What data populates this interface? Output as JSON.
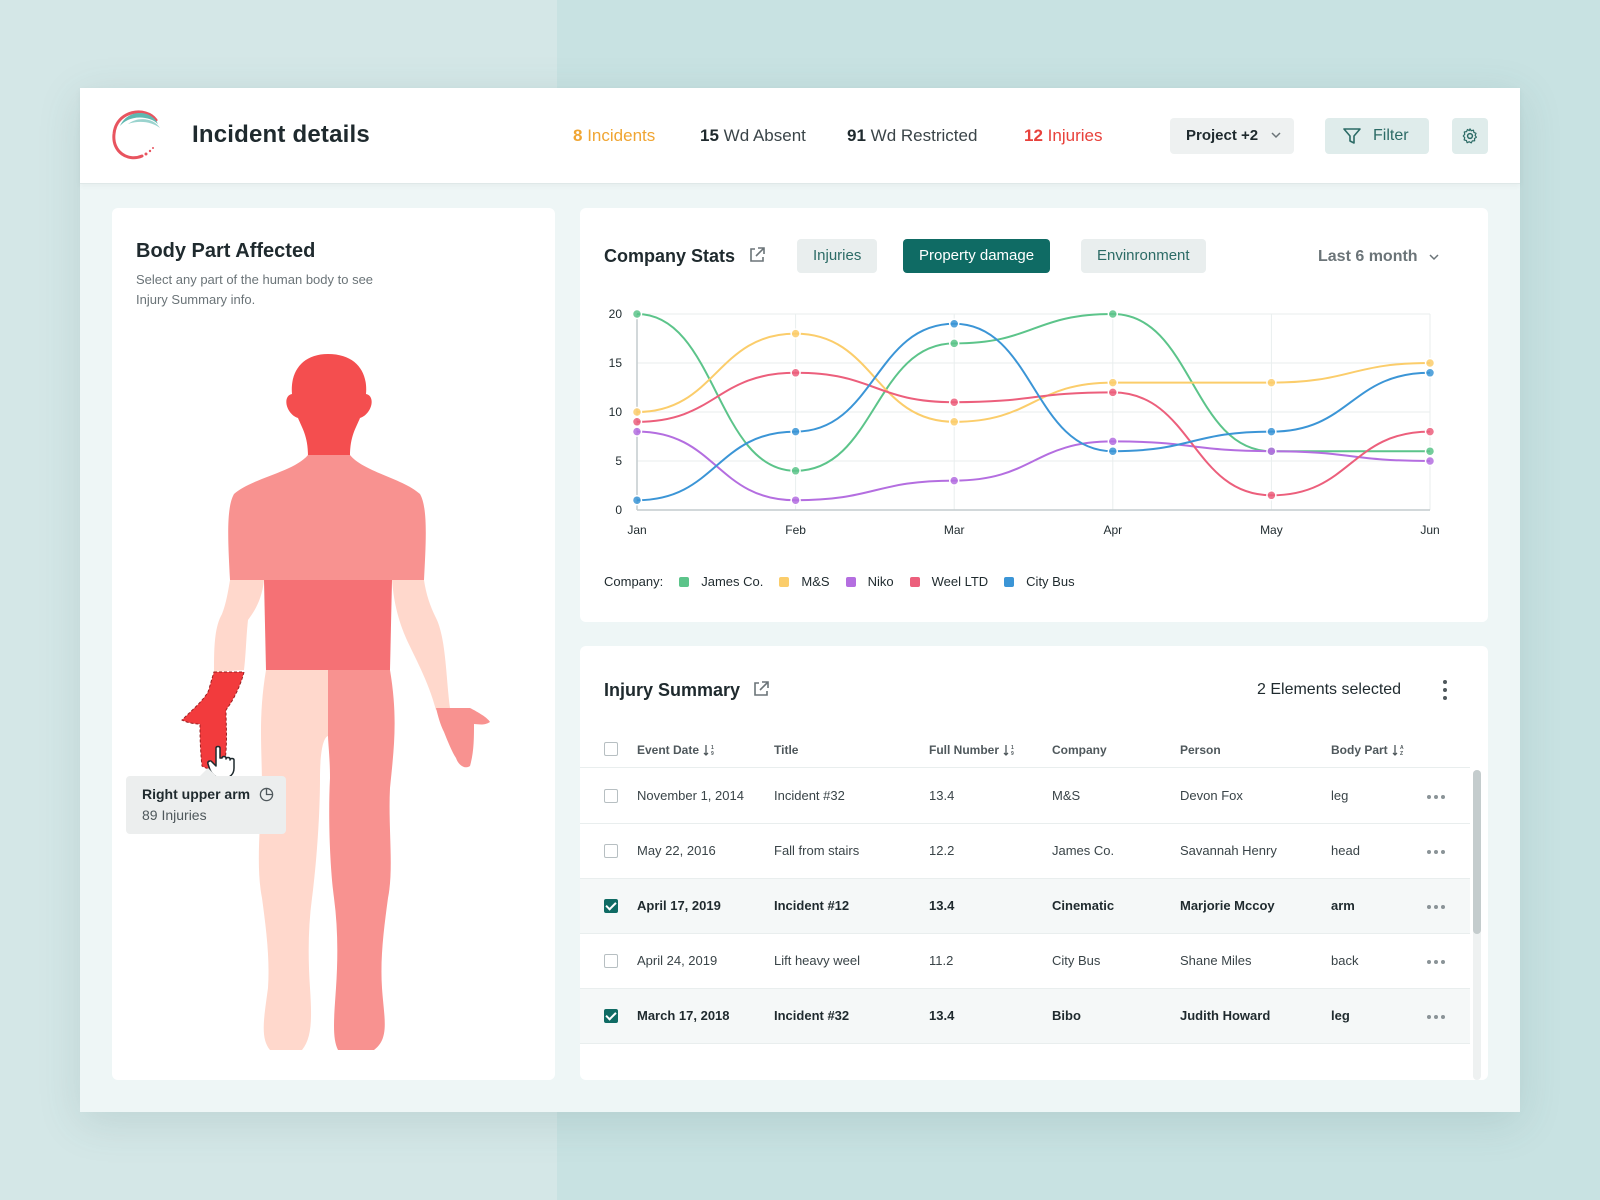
{
  "header": {
    "title": "Incident details",
    "stats": [
      {
        "num": "8",
        "label": "Incidents"
      },
      {
        "num": "15",
        "label": "Wd Absent"
      },
      {
        "num": "91",
        "label": "Wd Restricted"
      },
      {
        "num": "12",
        "label": "Injuries"
      }
    ],
    "project_select": "Project +2",
    "filter_label": "Filter"
  },
  "body_card": {
    "title": "Body Part Affected",
    "subtitle": "Select any part of the human body to see Injury Summary info.",
    "tooltip_title": "Right upper arm",
    "tooltip_sub": "89 Injuries"
  },
  "stats_card": {
    "title": "Company Stats",
    "tabs": [
      "Injuries",
      "Property damage",
      "Envinronment"
    ],
    "active_tab": "Property damage",
    "period": "Last 6 month",
    "legend_label": "Company:"
  },
  "chart_data": {
    "type": "line",
    "x": [
      "Jan",
      "Feb",
      "Mar",
      "Apr",
      "May",
      "Jun"
    ],
    "ylim": [
      0,
      20
    ],
    "yticks": [
      0,
      5,
      10,
      15,
      20
    ],
    "grid": true,
    "legend_position": "bottom-left",
    "series": [
      {
        "name": "James Co.",
        "color": "#5cc48a",
        "values": [
          20,
          4,
          17,
          20,
          6,
          6
        ]
      },
      {
        "name": "M&S",
        "color": "#fbcd6b",
        "values": [
          10,
          18,
          9,
          13,
          13,
          15
        ]
      },
      {
        "name": "Niko",
        "color": "#b46ee0",
        "values": [
          8,
          1,
          3,
          7,
          6,
          5
        ]
      },
      {
        "name": "Weel LTD",
        "color": "#ec5f7c",
        "values": [
          9,
          14,
          11,
          12,
          1.5,
          8
        ]
      },
      {
        "name": "City Bus",
        "color": "#3b95d6",
        "values": [
          1,
          8,
          19,
          6,
          8,
          14
        ]
      }
    ]
  },
  "table_card": {
    "title": "Injury Summary",
    "selected_text": "2 Elements selected",
    "columns": [
      "Event Date",
      "Title",
      "Full Number",
      "Company",
      "Person",
      "Body Part"
    ],
    "rows": [
      {
        "selected": false,
        "cells": [
          "November 1, 2014",
          "Incident #32",
          "13.4",
          "M&S",
          "Devon Fox",
          "leg"
        ]
      },
      {
        "selected": false,
        "cells": [
          "May 22, 2016",
          "Fall from stairs",
          "12.2",
          "James Co.",
          "Savannah Henry",
          "head"
        ]
      },
      {
        "selected": true,
        "cells": [
          "April 17, 2019",
          "Incident #12",
          "13.4",
          "Cinematic",
          "Marjorie Mccoy",
          "arm"
        ]
      },
      {
        "selected": false,
        "cells": [
          "April 24, 2019",
          "Lift heavy weel",
          "11.2",
          "City Bus",
          "Shane Miles",
          "back"
        ]
      },
      {
        "selected": true,
        "cells": [
          "March 17, 2018",
          "Incident #32",
          "13.4",
          "Bibo",
          "Judith Howard",
          "leg"
        ]
      }
    ]
  },
  "colors": {
    "accent": "#0f6b64",
    "incidents": "#f0a532",
    "injuries": "#e8413b"
  },
  "icons": [
    "logo-icon",
    "chevron-down-icon",
    "filter-icon",
    "gear-icon",
    "external-link-icon",
    "pie-chart-icon",
    "hand-cursor-icon",
    "sort-icon",
    "kebab-menu-icon",
    "more-dots-icon"
  ]
}
